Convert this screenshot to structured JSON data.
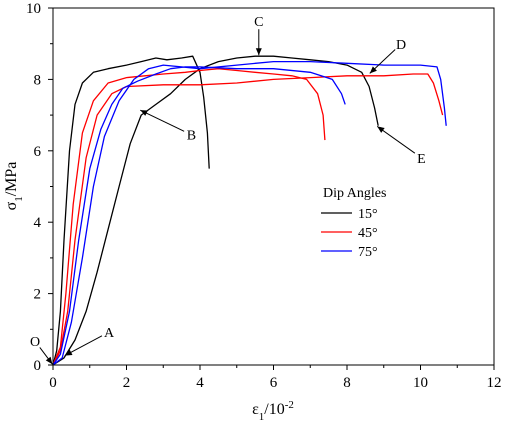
{
  "chart_data": {
    "type": "line",
    "title": "",
    "xlabel": "ε1/10-2",
    "ylabel": "σ1/MPa",
    "xlim": [
      0,
      12
    ],
    "ylim": [
      0,
      10
    ],
    "x_ticks": [
      0,
      2,
      4,
      6,
      8,
      10,
      12
    ],
    "y_ticks": [
      0,
      2,
      4,
      6,
      8,
      10
    ],
    "grid": false,
    "legend": {
      "title": "Dip Angles",
      "placement": "center-right"
    },
    "series": [
      {
        "name": "15°",
        "color": "#000000",
        "curves": [
          [
            [
              0,
              0
            ],
            [
              0.1,
              0.4
            ],
            [
              0.2,
              1.5
            ],
            [
              0.3,
              3.5
            ],
            [
              0.45,
              6.0
            ],
            [
              0.6,
              7.3
            ],
            [
              0.8,
              7.9
            ],
            [
              1.1,
              8.2
            ],
            [
              1.5,
              8.3
            ],
            [
              2.0,
              8.4
            ],
            [
              2.4,
              8.5
            ],
            [
              2.8,
              8.6
            ],
            [
              3.1,
              8.55
            ],
            [
              3.5,
              8.6
            ],
            [
              3.8,
              8.65
            ],
            [
              4.0,
              8.2
            ],
            [
              4.1,
              7.5
            ],
            [
              4.2,
              6.5
            ],
            [
              4.25,
              5.5
            ]
          ],
          [
            [
              0,
              0
            ],
            [
              0.3,
              0.2
            ],
            [
              0.6,
              0.7
            ],
            [
              0.9,
              1.5
            ],
            [
              1.2,
              2.6
            ],
            [
              1.5,
              3.8
            ],
            [
              1.8,
              5.0
            ],
            [
              2.1,
              6.2
            ],
            [
              2.4,
              7.0
            ],
            [
              2.8,
              7.3
            ],
            [
              3.2,
              7.6
            ],
            [
              3.6,
              8.0
            ],
            [
              4.0,
              8.3
            ],
            [
              4.5,
              8.5
            ],
            [
              5.0,
              8.6
            ],
            [
              5.5,
              8.65
            ],
            [
              6.0,
              8.65
            ],
            [
              6.5,
              8.6
            ],
            [
              7.0,
              8.55
            ],
            [
              7.5,
              8.5
            ],
            [
              8.0,
              8.4
            ],
            [
              8.4,
              8.2
            ],
            [
              8.6,
              7.8
            ],
            [
              8.75,
              7.2
            ],
            [
              8.85,
              6.7
            ]
          ]
        ]
      },
      {
        "name": "45°",
        "color": "#ff0000",
        "curves": [
          [
            [
              0,
              0
            ],
            [
              0.2,
              0.5
            ],
            [
              0.35,
              2.0
            ],
            [
              0.55,
              4.5
            ],
            [
              0.8,
              6.5
            ],
            [
              1.1,
              7.4
            ],
            [
              1.5,
              7.9
            ],
            [
              2.0,
              8.05
            ],
            [
              2.5,
              8.1
            ],
            [
              3.0,
              8.15
            ],
            [
              3.6,
              8.2
            ],
            [
              4.0,
              8.25
            ],
            [
              4.5,
              8.3
            ],
            [
              5.0,
              8.25
            ],
            [
              5.5,
              8.2
            ],
            [
              6.0,
              8.15
            ],
            [
              6.5,
              8.1
            ],
            [
              6.9,
              8.0
            ],
            [
              7.2,
              7.6
            ],
            [
              7.35,
              7.0
            ],
            [
              7.4,
              6.3
            ]
          ],
          [
            [
              0,
              0
            ],
            [
              0.2,
              0.4
            ],
            [
              0.4,
              1.5
            ],
            [
              0.6,
              3.5
            ],
            [
              0.9,
              5.8
            ],
            [
              1.2,
              7.0
            ],
            [
              1.6,
              7.6
            ],
            [
              2.0,
              7.8
            ],
            [
              3.0,
              7.85
            ],
            [
              4.0,
              7.85
            ],
            [
              5.0,
              7.9
            ],
            [
              6.0,
              8.0
            ],
            [
              7.0,
              8.05
            ],
            [
              8.0,
              8.1
            ],
            [
              9.0,
              8.1
            ],
            [
              9.8,
              8.15
            ],
            [
              10.2,
              8.15
            ],
            [
              10.35,
              7.9
            ],
            [
              10.5,
              7.4
            ],
            [
              10.6,
              7.0
            ]
          ]
        ]
      },
      {
        "name": "75°",
        "color": "#0000ff",
        "curves": [
          [
            [
              0,
              0
            ],
            [
              0.2,
              0.3
            ],
            [
              0.45,
              1.5
            ],
            [
              0.7,
              3.5
            ],
            [
              1.0,
              5.5
            ],
            [
              1.3,
              6.6
            ],
            [
              1.6,
              7.3
            ],
            [
              1.9,
              7.75
            ],
            [
              2.3,
              7.95
            ],
            [
              2.8,
              8.15
            ],
            [
              3.2,
              8.3
            ],
            [
              3.6,
              8.35
            ],
            [
              4.0,
              8.35
            ],
            [
              5.0,
              8.3
            ],
            [
              6.0,
              8.3
            ],
            [
              7.0,
              8.2
            ],
            [
              7.6,
              8.0
            ],
            [
              7.85,
              7.6
            ],
            [
              7.95,
              7.3
            ]
          ],
          [
            [
              0,
              0
            ],
            [
              0.25,
              0.2
            ],
            [
              0.5,
              1.2
            ],
            [
              0.8,
              3.0
            ],
            [
              1.1,
              5.0
            ],
            [
              1.4,
              6.4
            ],
            [
              1.8,
              7.4
            ],
            [
              2.2,
              8.0
            ],
            [
              2.6,
              8.3
            ],
            [
              3.0,
              8.4
            ],
            [
              4.0,
              8.3
            ],
            [
              5.0,
              8.4
            ],
            [
              6.0,
              8.5
            ],
            [
              7.0,
              8.5
            ],
            [
              8.0,
              8.45
            ],
            [
              9.0,
              8.4
            ],
            [
              10.0,
              8.4
            ],
            [
              10.45,
              8.35
            ],
            [
              10.55,
              8.0
            ],
            [
              10.65,
              7.2
            ],
            [
              10.7,
              6.7
            ]
          ]
        ]
      }
    ],
    "annotations": [
      {
        "label": "O",
        "at": [
          0.0,
          0.0
        ]
      },
      {
        "label": "A",
        "at": [
          0.3,
          0.25
        ]
      },
      {
        "label": "B",
        "at": [
          2.35,
          7.15
        ]
      },
      {
        "label": "C",
        "at": [
          5.6,
          8.65
        ]
      },
      {
        "label": "D",
        "at": [
          8.6,
          8.15
        ]
      },
      {
        "label": "E",
        "at": [
          8.8,
          6.7
        ]
      }
    ]
  }
}
